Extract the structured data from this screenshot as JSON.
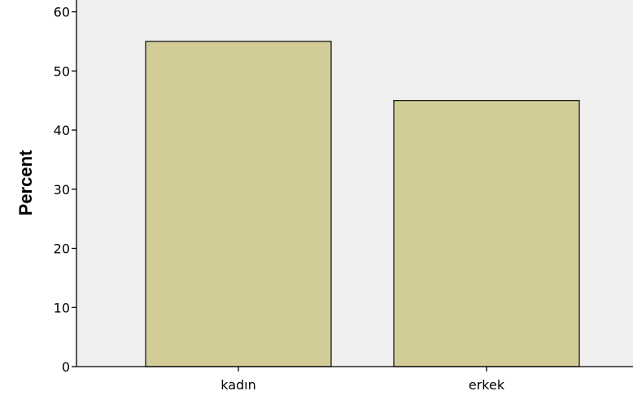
{
  "chart_data": {
    "type": "bar",
    "categories": [
      "kadın",
      "erkek"
    ],
    "values": [
      55,
      45
    ],
    "title": "",
    "xlabel": "",
    "ylabel": "Percent",
    "ylim": [
      0,
      62
    ],
    "yticks": [
      0,
      10,
      20,
      30,
      40,
      50,
      60
    ],
    "grid": false,
    "colors": {
      "bar_fill": "#d2cc98",
      "bar_stroke": "#1a1a1a",
      "plot_background": "#efefef",
      "axis": "#000000"
    }
  }
}
